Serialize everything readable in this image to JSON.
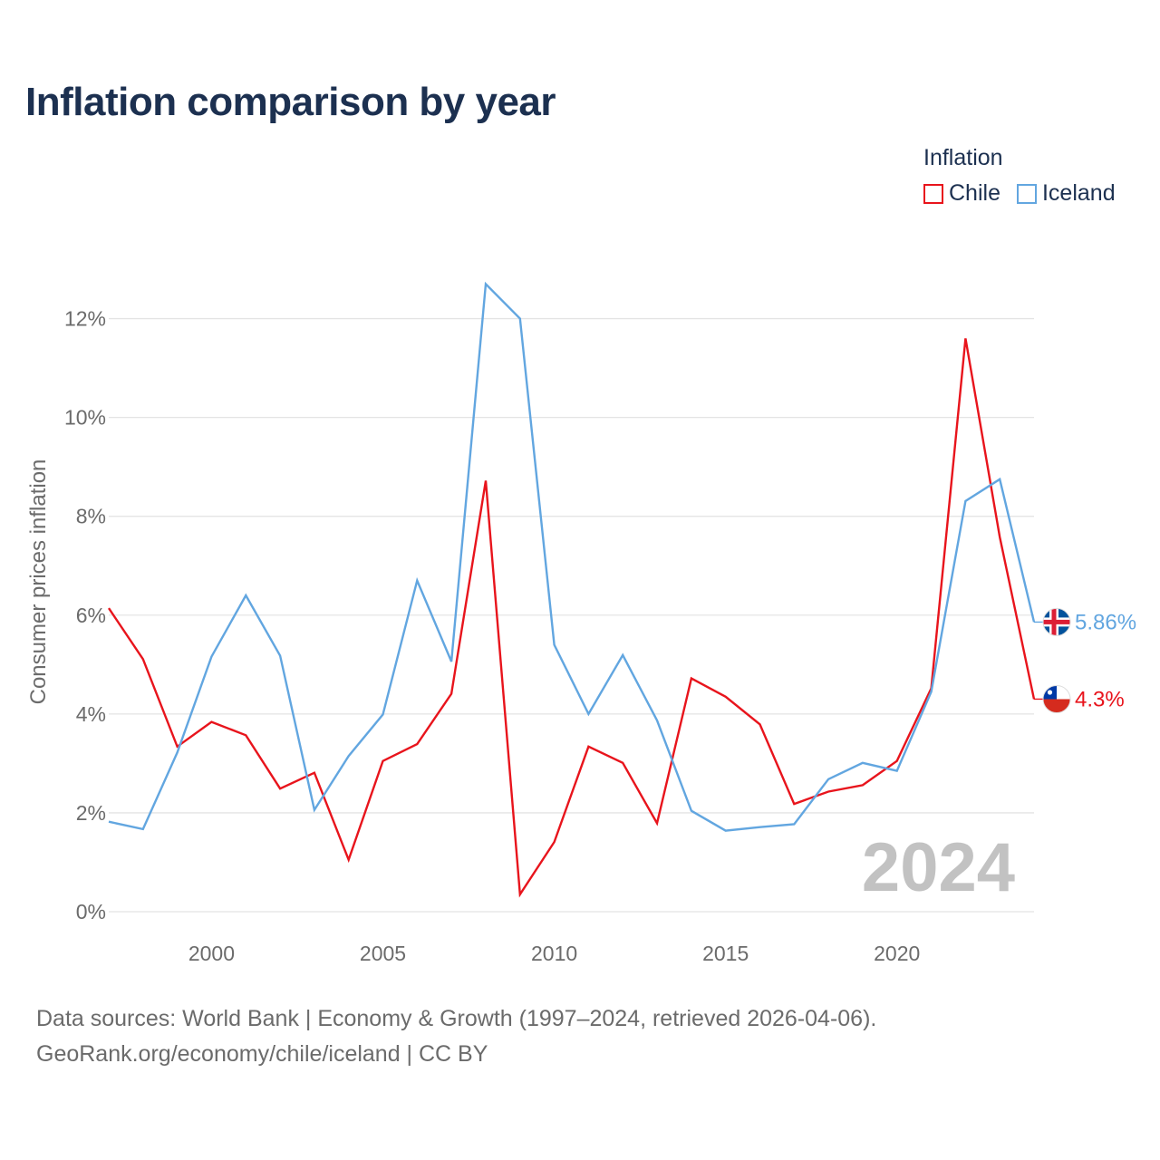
{
  "title": "Inflation comparison by year",
  "legend": {
    "title": "Inflation",
    "items": [
      {
        "label": "Chile",
        "color": "#e8141c"
      },
      {
        "label": "Iceland",
        "color": "#62a6e0"
      }
    ]
  },
  "watermark_year": "2024",
  "source": {
    "line1": "Data sources: World Bank | Economy & Growth (1997–2024, retrieved 2026-04-06).",
    "line2": "GeoRank.org/economy/chile/iceland | CC BY"
  },
  "chart_data": {
    "type": "line",
    "title": "Inflation comparison by year",
    "xlabel": "",
    "ylabel": "Consumer prices inflation",
    "xlim": [
      1997,
      2024
    ],
    "ylim": [
      0,
      13
    ],
    "x_ticks": [
      2000,
      2005,
      2010,
      2015,
      2020
    ],
    "y_ticks": [
      0,
      2,
      4,
      6,
      8,
      10,
      12
    ],
    "y_tick_labels": [
      "0%",
      "2%",
      "4%",
      "6%",
      "8%",
      "10%",
      "12%"
    ],
    "grid": true,
    "x": [
      1997,
      1998,
      1999,
      2000,
      2001,
      2002,
      2003,
      2004,
      2005,
      2006,
      2007,
      2008,
      2009,
      2010,
      2011,
      2012,
      2013,
      2014,
      2015,
      2016,
      2017,
      2018,
      2019,
      2020,
      2021,
      2022,
      2023,
      2024
    ],
    "series": [
      {
        "name": "Chile",
        "color": "#e8141c",
        "end_label": "4.3%",
        "flag": "chile-flag",
        "values": [
          6.14,
          5.11,
          3.34,
          3.84,
          3.57,
          2.49,
          2.81,
          1.05,
          3.05,
          3.39,
          4.41,
          8.72,
          0.35,
          1.41,
          3.34,
          3.01,
          1.79,
          4.72,
          4.35,
          3.79,
          2.18,
          2.43,
          2.56,
          3.05,
          4.52,
          11.6,
          7.58,
          4.3
        ]
      },
      {
        "name": "Iceland",
        "color": "#62a6e0",
        "end_label": "5.86%",
        "flag": "iceland-flag",
        "values": [
          1.82,
          1.67,
          3.22,
          5.16,
          6.4,
          5.18,
          2.06,
          3.15,
          3.99,
          6.7,
          5.06,
          12.7,
          12.0,
          5.4,
          4.0,
          5.19,
          3.87,
          2.04,
          1.64,
          1.71,
          1.77,
          2.68,
          3.01,
          2.85,
          4.45,
          8.31,
          8.75,
          5.86
        ]
      }
    ]
  }
}
